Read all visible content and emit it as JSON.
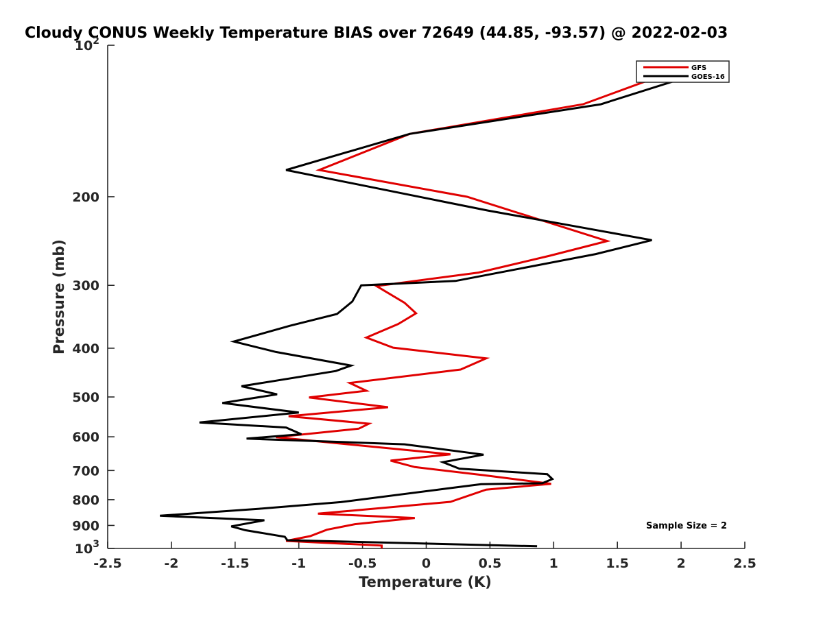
{
  "chart_data": {
    "type": "line",
    "title": "Cloudy CONUS Weekly Temperature BIAS over 72649 (44.85, -93.57) @ 2022-02-03",
    "xlabel": "Temperature (K)",
    "ylabel": "Pressure (mb)",
    "xlim": [
      -2.5,
      2.5
    ],
    "ylim": [
      100,
      1000
    ],
    "y_scale": "log",
    "y_reversed": true,
    "x_ticks": [
      "-2.5",
      "-2",
      "-1.5",
      "-1",
      "-0.5",
      "0",
      "0.5",
      "1",
      "1.5",
      "2",
      "2.5"
    ],
    "x_tick_values": [
      -2.5,
      -2,
      -1.5,
      -1,
      -0.5,
      0,
      0.5,
      1,
      1.5,
      2,
      2.5
    ],
    "y_tick_values": [
      100,
      200,
      300,
      400,
      500,
      600,
      700,
      800,
      900,
      1000
    ],
    "y_ticks": [
      {
        "base": "10",
        "exp": "2"
      },
      {
        "base": "200",
        "exp": ""
      },
      {
        "base": "300",
        "exp": ""
      },
      {
        "base": "400",
        "exp": ""
      },
      {
        "base": "500",
        "exp": ""
      },
      {
        "base": "600",
        "exp": ""
      },
      {
        "base": "700",
        "exp": ""
      },
      {
        "base": "800",
        "exp": ""
      },
      {
        "base": "900",
        "exp": ""
      },
      {
        "base": "10",
        "exp": "3"
      }
    ],
    "grid": false,
    "legend_position": "top-right",
    "annotation": "Sample Size = 2",
    "series": [
      {
        "name": "GFS",
        "color": "#e00000",
        "points": [
          [
            1.8,
            116
          ],
          [
            1.23,
            131
          ],
          [
            -0.13,
            150
          ],
          [
            -0.84,
            177
          ],
          [
            0.32,
            200
          ],
          [
            1.42,
            245
          ],
          [
            0.97,
            262
          ],
          [
            0.41,
            283
          ],
          [
            -0.39,
            301
          ],
          [
            -0.17,
            325
          ],
          [
            -0.08,
            341
          ],
          [
            -0.22,
            358
          ],
          [
            -0.47,
            381
          ],
          [
            -0.26,
            399
          ],
          [
            0.47,
            419
          ],
          [
            0.27,
            441
          ],
          [
            -0.6,
            469
          ],
          [
            -0.47,
            486
          ],
          [
            -0.92,
            501
          ],
          [
            -0.3,
            524
          ],
          [
            -1.08,
            546
          ],
          [
            -0.45,
            565
          ],
          [
            -0.53,
            578
          ],
          [
            -1.18,
            601
          ],
          [
            0.19,
            650
          ],
          [
            -0.28,
            669
          ],
          [
            -0.09,
            689
          ],
          [
            0.45,
            715
          ],
          [
            0.98,
            744
          ],
          [
            0.47,
            764
          ],
          [
            0.19,
            808
          ],
          [
            -0.85,
            853
          ],
          [
            -0.09,
            870
          ],
          [
            -0.56,
            895
          ],
          [
            -0.78,
            918
          ],
          [
            -0.91,
            945
          ],
          [
            -1.1,
            966
          ],
          [
            -0.35,
            987
          ],
          [
            -0.35,
            1000
          ]
        ]
      },
      {
        "name": "GOES-16",
        "color": "#000000",
        "points": [
          [
            2.03,
            116
          ],
          [
            1.37,
            131
          ],
          [
            -0.13,
            150
          ],
          [
            -1.1,
            177
          ],
          [
            0.48,
            213
          ],
          [
            1.77,
            244
          ],
          [
            1.33,
            260
          ],
          [
            0.23,
            294
          ],
          [
            -0.51,
            300
          ],
          [
            -0.58,
            323
          ],
          [
            -0.7,
            342
          ],
          [
            -1.07,
            361
          ],
          [
            -1.51,
            388
          ],
          [
            -1.18,
            407
          ],
          [
            -0.59,
            433
          ],
          [
            -0.71,
            444
          ],
          [
            -1.45,
            476
          ],
          [
            -1.17,
            494
          ],
          [
            -1.6,
            514
          ],
          [
            -1.0,
            537
          ],
          [
            -1.78,
            562
          ],
          [
            -1.1,
            575
          ],
          [
            -0.98,
            593
          ],
          [
            -1.41,
            605
          ],
          [
            -0.17,
            621
          ],
          [
            0.45,
            651
          ],
          [
            0.13,
            674
          ],
          [
            0.26,
            694
          ],
          [
            0.95,
            712
          ],
          [
            0.99,
            728
          ],
          [
            0.91,
            742
          ],
          [
            0.43,
            745
          ],
          [
            0.15,
            761
          ],
          [
            -0.67,
            809
          ],
          [
            -1.31,
            834
          ],
          [
            -2.09,
            861
          ],
          [
            -1.27,
            879
          ],
          [
            -1.53,
            904
          ],
          [
            -1.42,
            920
          ],
          [
            -1.11,
            948
          ],
          [
            -1.09,
            963
          ],
          [
            0.87,
            990
          ]
        ]
      }
    ]
  }
}
